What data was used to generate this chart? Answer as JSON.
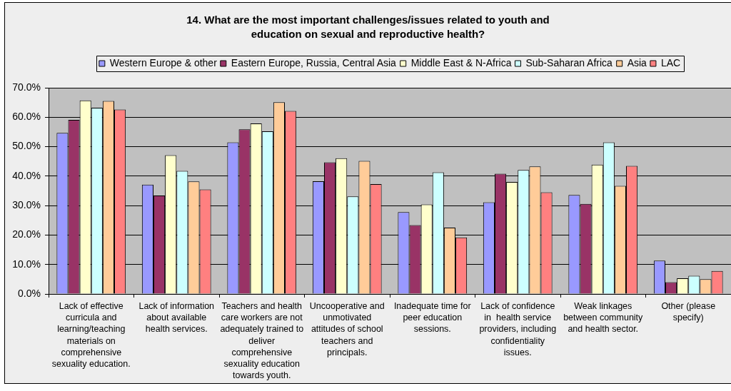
{
  "chart_data": {
    "type": "bar",
    "title": "14. What are the most important challenges/issues related to youth and education on sexual and reproductive health?",
    "categories": [
      "Lack of effective curricula and learning/teaching materials on comprehensive sexuality education.",
      "Lack of information about available health services.",
      "Teachers and health care workers are not adequately trained to deliver comprehensive sexuality education towards youth.",
      "Uncooperative and unmotivated attitudes of school teachers and principals.",
      "Inadequate time for peer education sessions.",
      "Lack of confidence in  health service providers, including confidentiality issues.",
      "Weak linkages between community and health sector.",
      "Other (please specify)"
    ],
    "series": [
      {
        "name": "Western Europe & other",
        "color": "#9999ff",
        "values": [
          54.7,
          37.1,
          51.5,
          38.3,
          27.8,
          31.1,
          33.6,
          11.3
        ]
      },
      {
        "name": "Eastern Europe, Russia, Central Asia",
        "color": "#993366",
        "values": [
          59.1,
          33.4,
          55.9,
          44.7,
          23.4,
          40.8,
          30.6,
          4.0
        ]
      },
      {
        "name": "Middle East & N-Africa",
        "color": "#ffffcc",
        "values": [
          65.7,
          47.1,
          57.9,
          46.1,
          30.4,
          38.0,
          43.9,
          5.3
        ]
      },
      {
        "name": "Sub-Saharan Africa",
        "color": "#ccffff",
        "values": [
          63.2,
          41.8,
          55.2,
          33.1,
          41.3,
          42.1,
          51.5,
          6.2
        ]
      },
      {
        "name": "Asia",
        "color": "#ffcc99",
        "values": [
          65.5,
          38.2,
          65.1,
          45.2,
          22.5,
          43.3,
          36.7,
          5.0
        ]
      },
      {
        "name": "LAC",
        "color": "#ff8080",
        "values": [
          62.6,
          35.5,
          62.1,
          37.3,
          19.2,
          34.5,
          43.5,
          7.8
        ]
      }
    ],
    "ylim": [
      0,
      70
    ],
    "yticks": [
      {
        "value": 0,
        "label": "0.0%"
      },
      {
        "value": 10,
        "label": "10.0%"
      },
      {
        "value": 20,
        "label": "20.0%"
      },
      {
        "value": 30,
        "label": "30.0%"
      },
      {
        "value": 40,
        "label": "40.0%"
      },
      {
        "value": 50,
        "label": "50.0%"
      },
      {
        "value": 60,
        "label": "60.0%"
      },
      {
        "value": 70,
        "label": "70.0%"
      }
    ],
    "grid": "y",
    "legend": "top"
  }
}
